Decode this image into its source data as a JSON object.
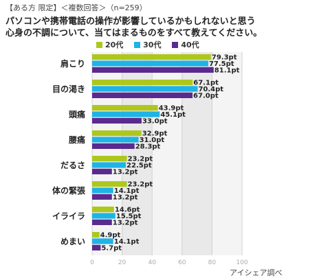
{
  "header": {
    "line1": "【ある方 限定】＜複数回答＞（n=259）",
    "line2": "パソコンや携帯電話の操作が影響しているかもしれないと思う",
    "line3": "心身の不調について、当てはまるものをすべて教えてください。"
  },
  "source": "アイシェア調べ",
  "colors": {
    "series20": "#aec71e",
    "series30": "#1fb3e6",
    "series40": "#5a2a8f",
    "band": "#e9e9e9",
    "band_light": "#f4f4f4",
    "grid": "#d0d0d0"
  },
  "chart_data": {
    "type": "bar",
    "orientation": "horizontal",
    "categories": [
      "肩こり",
      "目の渇き",
      "頭痛",
      "腰痛",
      "だるさ",
      "体の緊張",
      "イライラ",
      "めまい"
    ],
    "series": [
      {
        "name": "20代",
        "values": [
          79.3,
          67.1,
          43.9,
          32.9,
          23.2,
          23.2,
          14.6,
          4.9
        ],
        "labels": [
          "79.3pt",
          "67.1pt",
          "43.9pt",
          "32.9pt",
          "23.2pt",
          "23.2pt",
          "14.6pt",
          "4.9pt"
        ]
      },
      {
        "name": "30代",
        "values": [
          77.5,
          70.4,
          45.1,
          31.0,
          22.5,
          14.1,
          15.5,
          14.1
        ],
        "labels": [
          "77.5pt",
          "70.4pt",
          "45.1pt",
          "31.0pt",
          "22.5pt",
          "14.1pt",
          "15.5pt",
          "14.1pt"
        ]
      },
      {
        "name": "40代",
        "values": [
          81.1,
          67.0,
          33.0,
          28.3,
          13.2,
          13.2,
          13.2,
          5.7
        ],
        "labels": [
          "81.1pt",
          "67.0pt",
          "33.0pt",
          "28.3pt",
          "13.2pt",
          "13.2pt",
          "13.2pt",
          "5.7pt"
        ]
      }
    ],
    "xlim": [
      0,
      100
    ],
    "xticks": [
      0,
      20,
      40,
      60,
      80,
      100
    ],
    "grid": true,
    "legend": "top"
  }
}
